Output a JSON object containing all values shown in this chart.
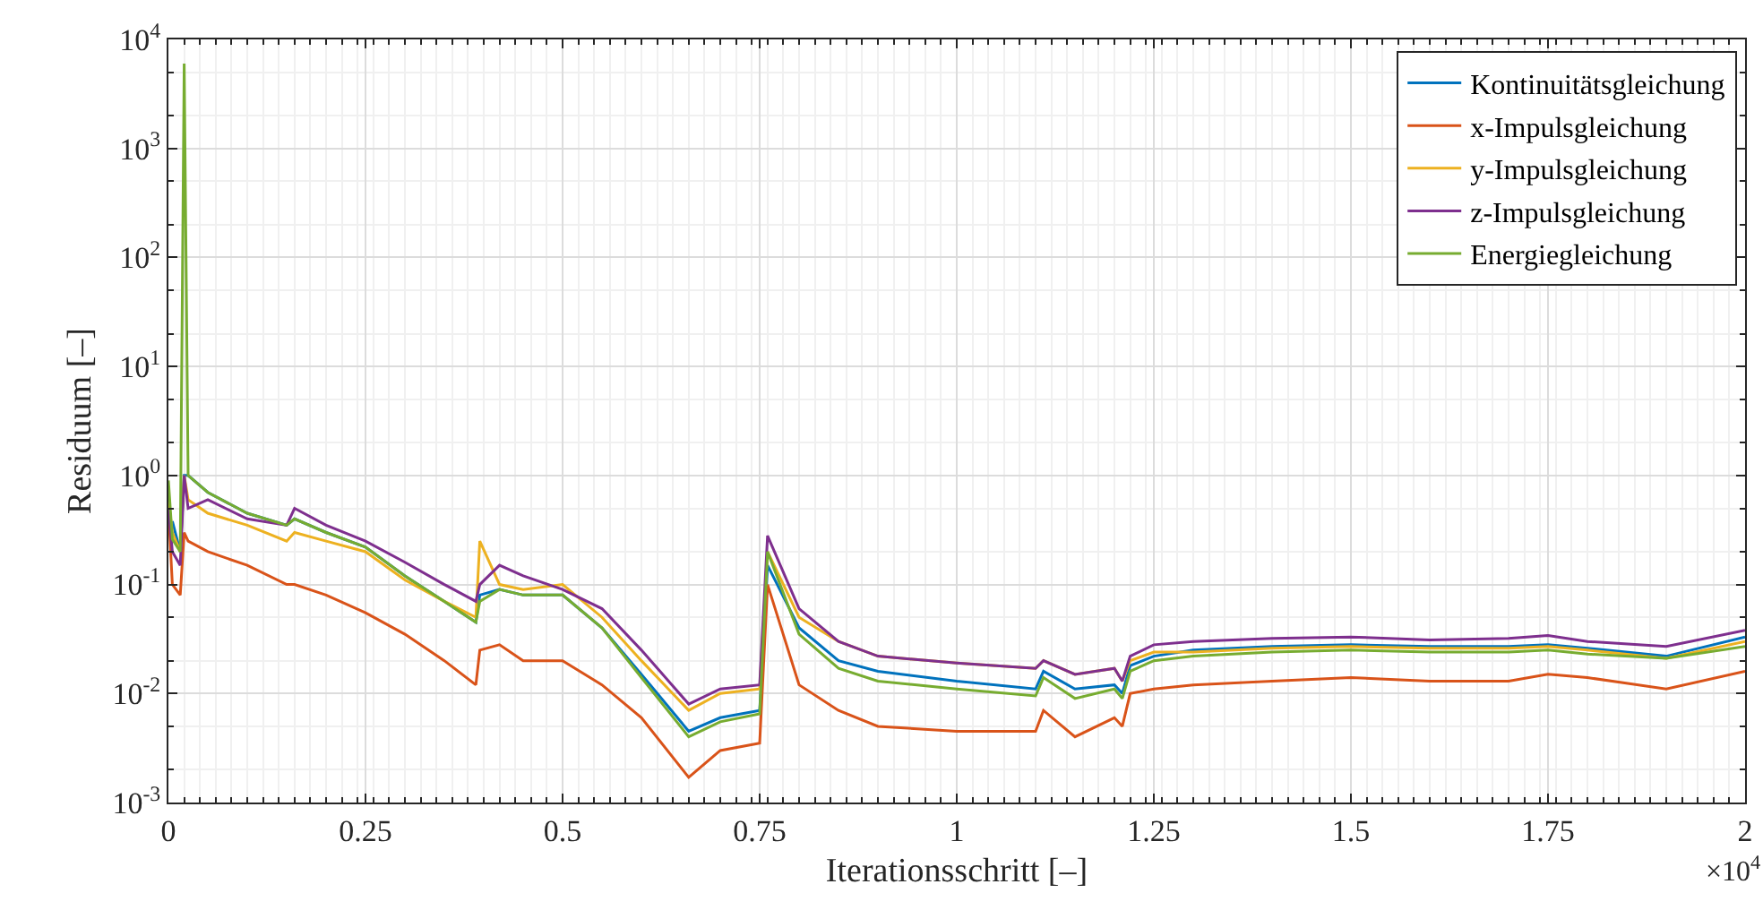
{
  "chart_data": {
    "type": "line",
    "xlabel": "Iterationsschritt [–]",
    "ylabel": "Residuum [–]",
    "annotations": [
      "×10$^{4}$"
    ],
    "x": [
      0,
      0.005,
      0.015,
      0.02,
      0.025,
      0.05,
      0.1,
      0.15,
      0.16,
      0.2,
      0.25,
      0.3,
      0.35,
      0.39,
      0.395,
      0.42,
      0.45,
      0.5,
      0.55,
      0.6,
      0.66,
      0.7,
      0.75,
      0.76,
      0.8,
      0.85,
      0.9,
      1.0,
      1.1,
      1.11,
      1.15,
      1.2,
      1.21,
      1.22,
      1.25,
      1.3,
      1.4,
      1.5,
      1.6,
      1.7,
      1.75,
      1.8,
      1.9,
      2.0
    ],
    "series": [
      {
        "name": "Kontinuitätsgleichung",
        "color": "#0072bd",
        "values": [
          null,
          0.38,
          0.2,
          1,
          1.0,
          0.7,
          0.45,
          0.35,
          0.4,
          0.3,
          0.22,
          0.12,
          0.07,
          0.045,
          0.08,
          0.09,
          0.08,
          0.08,
          0.04,
          0.015,
          0.0045,
          0.006,
          0.007,
          0.15,
          0.04,
          0.02,
          0.016,
          0.013,
          0.011,
          0.016,
          0.011,
          0.012,
          0.01,
          0.018,
          0.022,
          0.025,
          0.027,
          0.028,
          0.027,
          0.027,
          0.028,
          0.026,
          0.022,
          0.033
        ]
      },
      {
        "name": "x-Impulsgleichung",
        "color": "#d95319",
        "values": [
          0.5,
          0.1,
          0.08,
          0.3,
          0.25,
          0.2,
          0.15,
          0.1,
          0.1,
          0.08,
          0.055,
          0.035,
          0.02,
          0.012,
          0.025,
          0.028,
          0.02,
          0.02,
          0.012,
          0.006,
          0.0017,
          0.003,
          0.0035,
          0.1,
          0.012,
          0.007,
          0.005,
          0.0045,
          0.0045,
          0.007,
          0.004,
          0.006,
          0.005,
          0.01,
          0.011,
          0.012,
          0.013,
          0.014,
          0.013,
          0.013,
          0.015,
          0.014,
          0.011,
          0.016
        ]
      },
      {
        "name": "y-Impulsgleichung",
        "color": "#edb120",
        "values": [
          0.6,
          0.3,
          0.2,
          1,
          0.6,
          0.45,
          0.35,
          0.25,
          0.3,
          0.25,
          0.2,
          0.11,
          0.07,
          0.05,
          0.25,
          0.1,
          0.09,
          0.1,
          0.05,
          0.02,
          0.007,
          0.01,
          0.011,
          0.2,
          0.05,
          0.03,
          0.022,
          0.019,
          0.017,
          0.02,
          0.015,
          0.017,
          0.013,
          0.02,
          0.024,
          0.024,
          0.026,
          0.027,
          0.026,
          0.026,
          0.027,
          0.025,
          0.021,
          0.03
        ]
      },
      {
        "name": "z-Impulsgleichung",
        "color": "#7e2f8e",
        "values": [
          0.5,
          0.2,
          0.15,
          1,
          0.5,
          0.6,
          0.4,
          0.35,
          0.5,
          0.35,
          0.25,
          0.16,
          0.1,
          0.07,
          0.1,
          0.15,
          0.12,
          0.09,
          0.06,
          0.025,
          0.008,
          0.011,
          0.012,
          0.28,
          0.06,
          0.03,
          0.022,
          0.019,
          0.017,
          0.02,
          0.015,
          0.017,
          0.013,
          0.022,
          0.028,
          0.03,
          0.032,
          0.033,
          0.031,
          0.032,
          0.034,
          0.03,
          0.027,
          0.038
        ]
      },
      {
        "name": "Energiegleichung",
        "color": "#77ac30",
        "values": [
          0.9,
          0.26,
          0.2,
          6000,
          1.0,
          0.7,
          0.45,
          0.35,
          0.4,
          0.3,
          0.22,
          0.12,
          0.07,
          0.045,
          0.07,
          0.09,
          0.08,
          0.08,
          0.04,
          0.014,
          0.004,
          0.0055,
          0.0065,
          0.2,
          0.035,
          0.017,
          0.013,
          0.011,
          0.0095,
          0.014,
          0.009,
          0.011,
          0.009,
          0.016,
          0.02,
          0.022,
          0.024,
          0.025,
          0.024,
          0.024,
          0.025,
          0.023,
          0.021,
          0.027
        ]
      }
    ],
    "log": "y",
    "xlim": [
      0,
      2
    ],
    "xticks": [
      0,
      0.25,
      0.5,
      0.75,
      1,
      1.25,
      1.5,
      1.75,
      2
    ],
    "ylim": [
      0.001,
      10000
    ],
    "yticks": [
      {
        "value": 0.001,
        "label": "10$^{-3}$"
      },
      {
        "value": 0.01,
        "label": "10$^{-2}$"
      },
      {
        "value": 0.1,
        "label": "10$^{-1}$"
      },
      {
        "value": 1,
        "label": "10$^{0}$"
      },
      {
        "value": 10,
        "label": "10$^{1}$"
      },
      {
        "value": 100,
        "label": "10$^{2}$"
      },
      {
        "value": 1000,
        "label": "10$^{3}$"
      },
      {
        "value": 10000,
        "label": "10$^{4}$"
      }
    ],
    "grid": true,
    "legend": "top right",
    "line_style": "solid",
    "marker": "none"
  }
}
